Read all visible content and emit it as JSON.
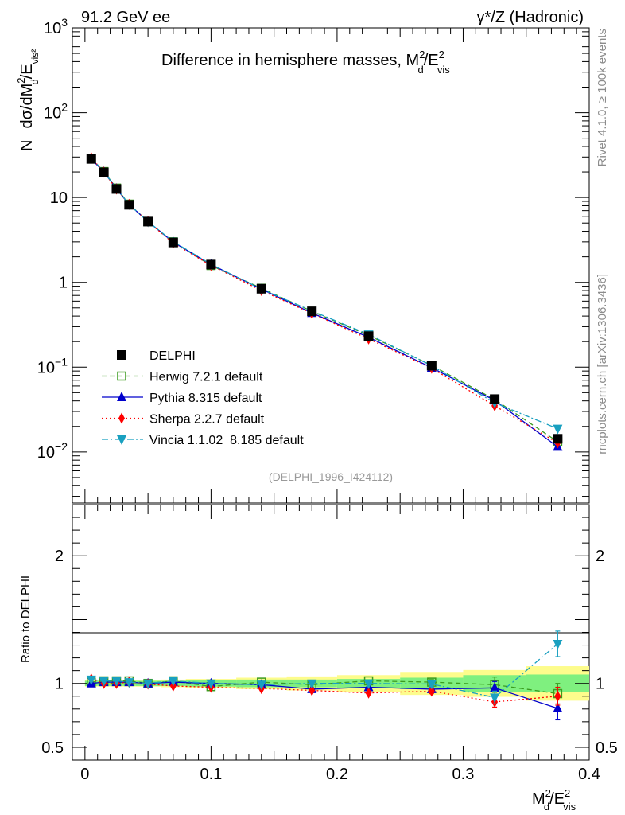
{
  "header": {
    "energy_label": "91.2 GeV ee",
    "process_label": "γ*/Z (Hadronic)",
    "side_label_top": "Rivet 4.1.0, ≥ 100k events",
    "side_label_bottom": "mcplots.cern.ch [arXiv:1306.3436]"
  },
  "chart_data": {
    "type": "line",
    "title": "Difference in hemisphere masses, M²d/E²vis",
    "title_main": "Difference in hemisphere masses, M",
    "title_sub": "d",
    "title_sup": "2",
    "title_tail": "/E",
    "title_tail_sub": "vis",
    "title_tail_sup": "2",
    "analysis_id": "(DELPHI_1996_I424112)",
    "xlabel_main": "M",
    "xlabel_sup": "2",
    "xlabel_sub": "d",
    "xlabel_tail": "/E",
    "xlabel_tail_sup": "2",
    "xlabel_tail_sub": "vis",
    "ylabel_prefix": "N",
    "ylabel": "dσ/dM²d/E²vis",
    "ylabel_main": "dσ/dM",
    "ylabel_main_sup": "2",
    "ylabel_main_sub": "d",
    "ylabel_tail": "/E",
    "ylabel_tail_sub": "vis²",
    "ratio_ylabel": "Ratio to DELPHI",
    "xlim": [
      -0.01,
      0.4
    ],
    "ylim": [
      0.0025,
      1000
    ],
    "ratio_ylim": [
      0.4,
      2.4
    ],
    "yscale": "log",
    "xticks": [
      0,
      0.1,
      0.2,
      0.3,
      0.4
    ],
    "xtick_labels": [
      "0",
      "0.1",
      "0.2",
      "0.3",
      "0.4"
    ],
    "yticks": [
      {
        "value": 1000,
        "base": "10",
        "exp": "3"
      },
      {
        "value": 100,
        "base": "10",
        "exp": "2"
      },
      {
        "value": 10,
        "base": "10",
        "exp": ""
      },
      {
        "value": 1,
        "base": "1",
        "exp": ""
      },
      {
        "value": 0.1,
        "base": "10",
        "exp": "−1"
      },
      {
        "value": 0.01,
        "base": "10",
        "exp": "−2"
      }
    ],
    "ratio_yticks": [
      {
        "value": 2,
        "label": "2"
      },
      {
        "value": 1,
        "label": "1"
      },
      {
        "value": 0.5,
        "label": "0.5"
      }
    ],
    "x": [
      0.005,
      0.015,
      0.025,
      0.035,
      0.05,
      0.07,
      0.1,
      0.14,
      0.18,
      0.225,
      0.275,
      0.325,
      0.375
    ],
    "bins": [
      [
        0.0,
        0.01
      ],
      [
        0.01,
        0.02
      ],
      [
        0.02,
        0.03
      ],
      [
        0.03,
        0.04
      ],
      [
        0.04,
        0.06
      ],
      [
        0.06,
        0.08
      ],
      [
        0.08,
        0.12
      ],
      [
        0.12,
        0.16
      ],
      [
        0.16,
        0.2
      ],
      [
        0.2,
        0.25
      ],
      [
        0.25,
        0.3
      ],
      [
        0.3,
        0.35
      ],
      [
        0.35,
        0.4
      ]
    ],
    "band_inner": [
      0.02,
      0.02,
      0.02,
      0.02,
      0.02,
      0.02,
      0.025,
      0.03,
      0.03,
      0.035,
      0.045,
      0.065,
      0.07
    ],
    "band_outer": [
      0.025,
      0.025,
      0.025,
      0.025,
      0.025,
      0.03,
      0.035,
      0.045,
      0.055,
      0.065,
      0.09,
      0.105,
      0.135
    ],
    "series": [
      {
        "name": "DELPHI",
        "color": "#000000",
        "marker": "square-filled",
        "line": "none",
        "values": [
          28.5,
          19.8,
          12.6,
          8.2,
          5.2,
          2.95,
          1.62,
          0.84,
          0.455,
          0.232,
          0.104,
          0.042,
          0.0143
        ],
        "ratio": [
          1,
          1,
          1,
          1,
          1,
          1,
          1,
          1,
          1,
          1,
          1,
          1,
          1
        ]
      },
      {
        "name": "Herwig 7.2.1 default",
        "color": "#3a9b1e",
        "marker": "square-open",
        "line": "dashed",
        "values": [
          28.8,
          20.2,
          12.9,
          8.35,
          5.2,
          3.0,
          1.58,
          0.85,
          0.455,
          0.237,
          0.105,
          0.0415,
          0.0132
        ],
        "ratio": [
          1.01,
          1.02,
          1.02,
          1.02,
          1.0,
          1.02,
          0.975,
          1.01,
          0.99,
          1.02,
          1.01,
          0.99,
          0.92
        ],
        "ratio_err": [
          0,
          0,
          0,
          0,
          0,
          0,
          0,
          0,
          0,
          0,
          0.02,
          0.06,
          0.08
        ]
      },
      {
        "name": "Pythia 8.315 default",
        "color": "#0000cc",
        "marker": "triangle-up",
        "line": "solid",
        "values": [
          28.5,
          20.0,
          12.7,
          8.25,
          5.2,
          2.98,
          1.62,
          0.83,
          0.435,
          0.225,
          0.0985,
          0.0405,
          0.0115
        ],
        "ratio": [
          1.0,
          1.01,
          1.01,
          1.01,
          1.0,
          1.01,
          1.0,
          0.99,
          0.955,
          0.97,
          0.955,
          0.965,
          0.805
        ],
        "ratio_err": [
          0,
          0,
          0,
          0,
          0,
          0,
          0,
          0,
          0,
          0,
          0.02,
          0.05,
          0.09
        ]
      },
      {
        "name": "Sherpa 2.2.7 default",
        "color": "#ff0000",
        "marker": "diamond",
        "line": "dotted",
        "values": [
          29.5,
          19.9,
          12.6,
          8.3,
          5.2,
          2.9,
          1.58,
          0.8,
          0.43,
          0.215,
          0.097,
          0.035,
          0.0128
        ],
        "ratio": [
          1.035,
          1.0,
          1.0,
          1.01,
          0.995,
          0.98,
          0.97,
          0.96,
          0.945,
          0.925,
          0.94,
          0.855,
          0.9
        ],
        "ratio_err": [
          0,
          0,
          0,
          0,
          0,
          0,
          0,
          0,
          0,
          0,
          0.02,
          0.04,
          0.07
        ]
      },
      {
        "name": "Vincia 1.1.02_8.185 default",
        "color": "#19a0c0",
        "marker": "triangle-down",
        "line": "dashdot",
        "values": [
          29.5,
          20.1,
          12.8,
          8.3,
          5.2,
          3.02,
          1.63,
          0.83,
          0.46,
          0.243,
          0.104,
          0.038,
          0.0188
        ],
        "ratio": [
          1.03,
          1.02,
          1.02,
          1.01,
          1.0,
          1.02,
          1.0,
          0.99,
          1.0,
          1.0,
          0.995,
          0.89,
          1.31
        ],
        "ratio_err": [
          0,
          0,
          0,
          0,
          0,
          0,
          0,
          0,
          0,
          0,
          0.02,
          0.05,
          0.1
        ]
      }
    ],
    "legend_position": "lower-left",
    "colors": {
      "band_inner": "#7ff07f",
      "band_outer": "#fdfc8c",
      "axis": "#000000",
      "watermark": "#8c8c8c"
    }
  }
}
